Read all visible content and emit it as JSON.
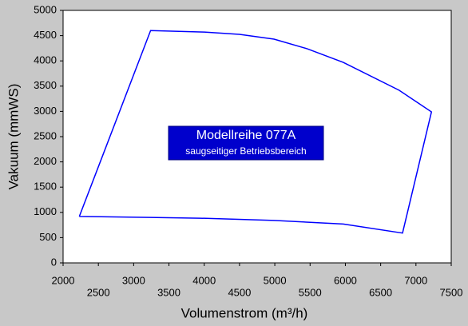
{
  "chart_data": {
    "type": "line",
    "x_label": "Volumenstrom (m³/h)",
    "y_label": "Vakuum (mmWS)",
    "annotation": {
      "title": "Modellreihe 077A",
      "subtitle": "saugseitiger Betriebsbereich"
    },
    "series": [
      {
        "color": "#0000ff",
        "x": [
          2230,
          3240,
          4000,
          4500,
          4990,
          5460,
          5970,
          6760,
          7220,
          6810,
          5970,
          4990,
          3940,
          3240,
          2230
        ],
        "values": [
          920,
          4600,
          4570,
          4525,
          4430,
          4240,
          3970,
          3420,
          2990,
          590,
          770,
          840,
          885,
          900,
          920
        ]
      }
    ],
    "xlim": [
      2000,
      7500
    ],
    "xticks": [
      2000,
      2500,
      3000,
      3500,
      4000,
      4500,
      5000,
      5500,
      6000,
      6500,
      7000,
      7500
    ],
    "ylim": [
      0,
      5000
    ],
    "yticks": [
      0,
      500,
      1000,
      1500,
      2000,
      2500,
      3000,
      3500,
      4000,
      4500,
      5000
    ]
  }
}
